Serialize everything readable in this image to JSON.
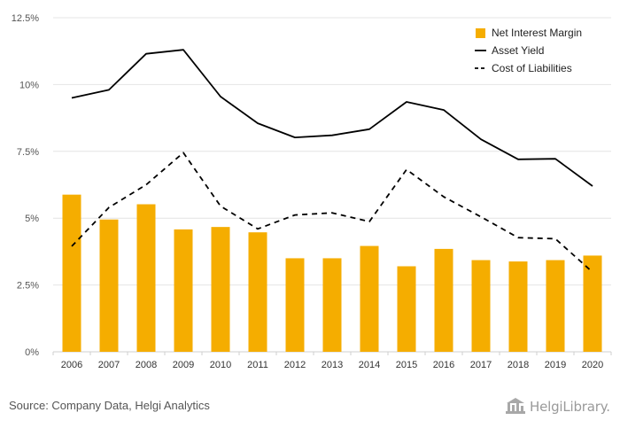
{
  "chart_data": {
    "type": "bar",
    "categories": [
      "2006",
      "2007",
      "2008",
      "2009",
      "2010",
      "2011",
      "2012",
      "2013",
      "2014",
      "2015",
      "2016",
      "2017",
      "2018",
      "2019",
      "2020"
    ],
    "series": [
      {
        "name": "Net Interest Margin",
        "kind": "bar",
        "color": "#F5AD00",
        "values": [
          5.88,
          4.95,
          5.52,
          4.58,
          4.67,
          4.47,
          3.5,
          3.5,
          3.96,
          3.2,
          3.85,
          3.43,
          3.38,
          3.43,
          3.6
        ]
      },
      {
        "name": "Asset Yield",
        "kind": "line",
        "style": "solid",
        "color": "#000000",
        "values": [
          9.5,
          9.8,
          11.15,
          11.3,
          9.55,
          8.55,
          8.02,
          8.1,
          8.33,
          9.35,
          9.05,
          7.95,
          7.2,
          7.22,
          6.2
        ]
      },
      {
        "name": "Cost of Liabilities",
        "kind": "line",
        "style": "dashed",
        "color": "#000000",
        "values": [
          3.95,
          5.4,
          6.25,
          7.45,
          5.45,
          4.6,
          5.12,
          5.2,
          4.87,
          6.82,
          5.8,
          5.05,
          4.27,
          4.23,
          2.98
        ]
      }
    ],
    "yticks": [
      "0%",
      "2.5%",
      "5%",
      "7.5%",
      "10%",
      "12.5%"
    ],
    "ylim": [
      0,
      12.5
    ],
    "grid": true,
    "legend_position": "top-right",
    "source": "Source: Company Data, Helgi Analytics",
    "logo_text": "HelgiLibrary."
  }
}
